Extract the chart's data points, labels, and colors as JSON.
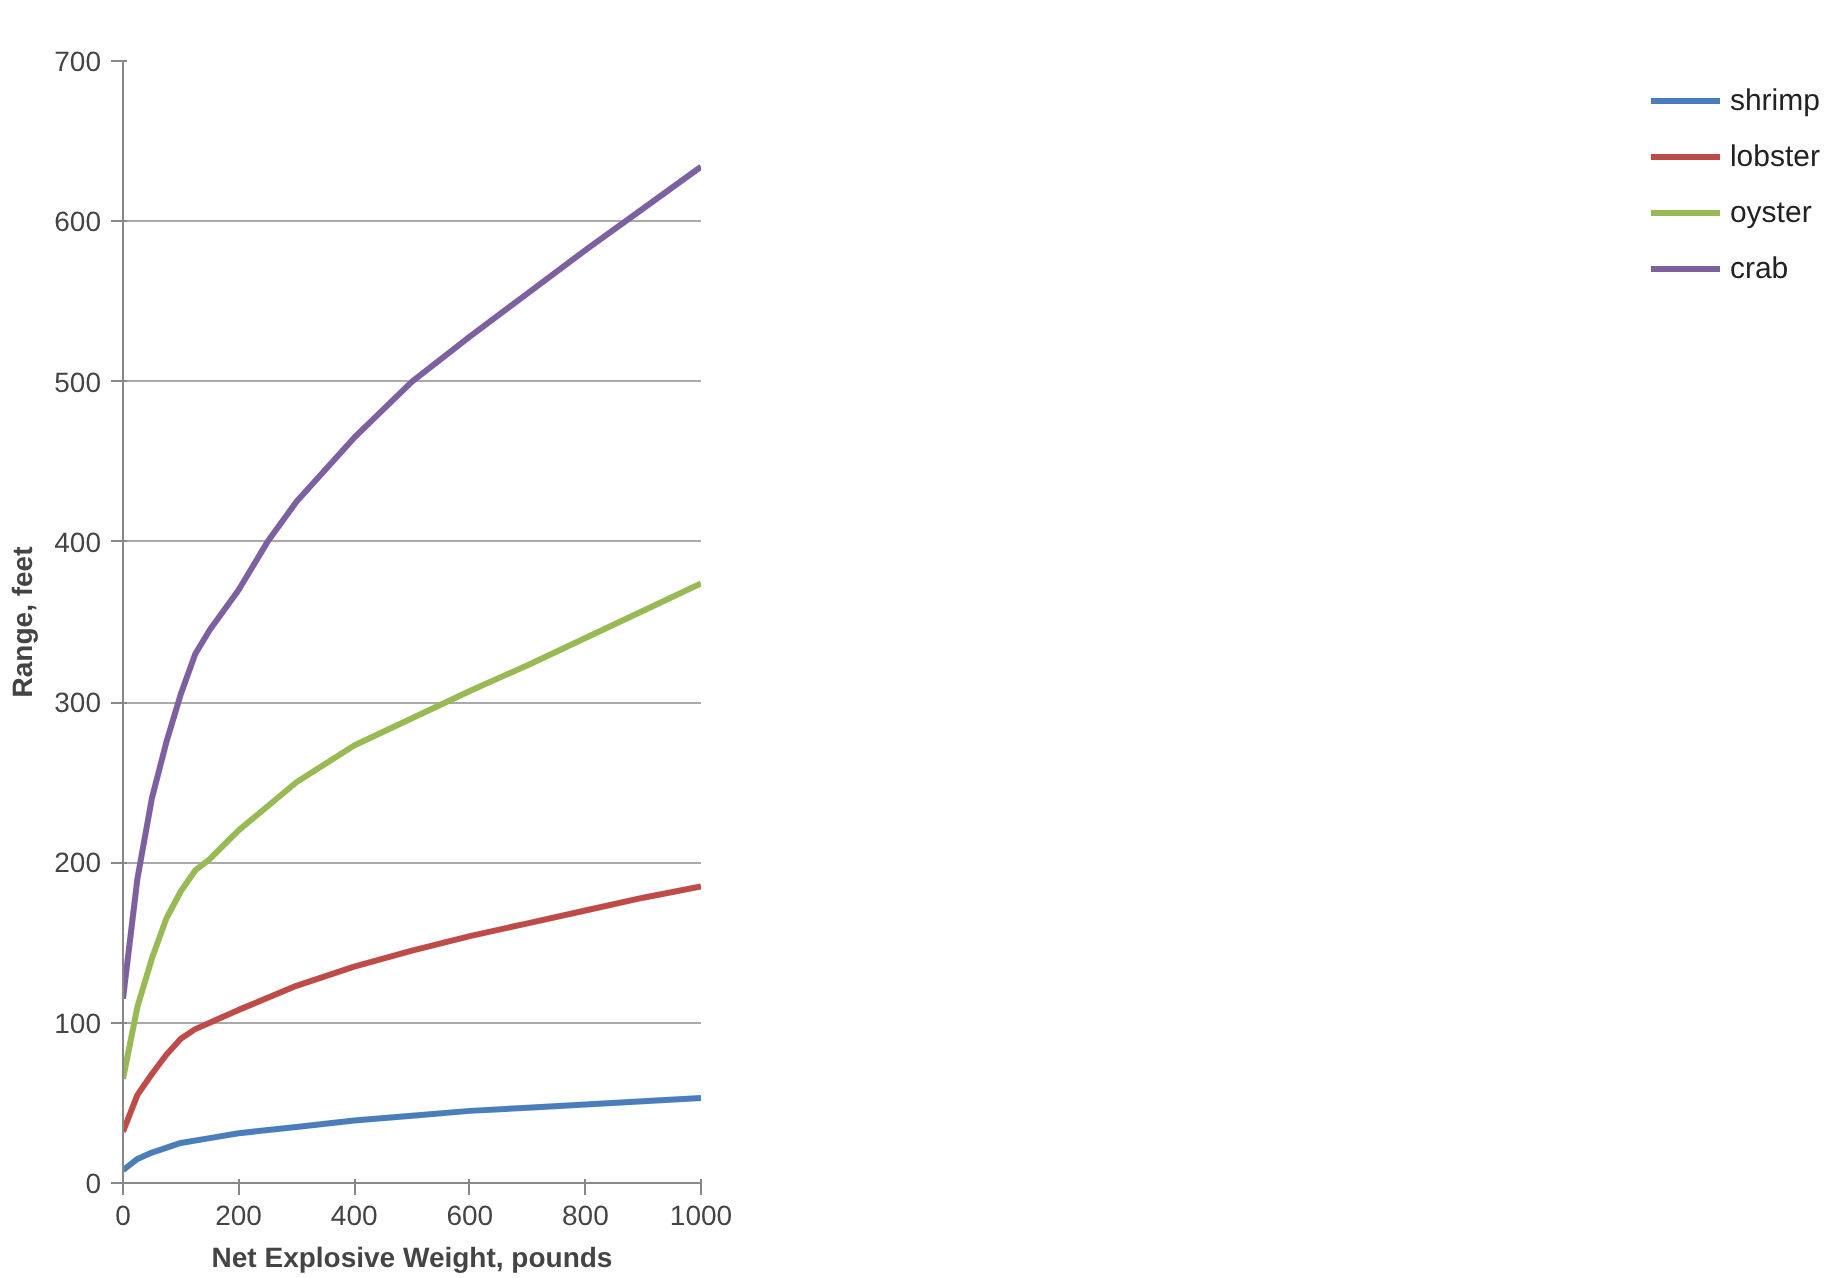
{
  "chart_data": {
    "type": "line",
    "xlabel": "Net Explosive Weight, pounds",
    "ylabel": "Range, feet",
    "xlim": [
      0,
      1000
    ],
    "xticks": [
      0,
      200,
      400,
      600,
      800,
      1000
    ],
    "ylim": [
      0,
      700
    ],
    "yticks": [
      0,
      100,
      200,
      300,
      400,
      500,
      600,
      700
    ],
    "grid": "y",
    "legend": "right",
    "marker": "none",
    "line_style": "solid",
    "series": [
      {
        "name": "shrimp",
        "color": "#4a7ebb",
        "x": [
          0,
          25,
          50,
          100,
          150,
          200,
          300,
          400,
          500,
          600,
          700,
          800,
          900,
          1000
        ],
        "values": [
          8,
          15,
          19,
          25,
          28,
          31,
          35,
          39,
          42,
          45,
          47,
          49,
          51,
          53
        ]
      },
      {
        "name": "lobster",
        "color": "#be4b48",
        "x": [
          0,
          25,
          50,
          75,
          100,
          125,
          150,
          200,
          300,
          400,
          500,
          600,
          700,
          800,
          900,
          1000
        ],
        "values": [
          32,
          55,
          68,
          80,
          90,
          96,
          100,
          108,
          123,
          135,
          145,
          154,
          162,
          170,
          178,
          185
        ]
      },
      {
        "name": "oyster",
        "color": "#98b954",
        "x": [
          0,
          25,
          50,
          75,
          100,
          125,
          150,
          200,
          300,
          400,
          500,
          600,
          700,
          800,
          900,
          1000
        ],
        "values": [
          65,
          110,
          140,
          165,
          182,
          195,
          202,
          220,
          250,
          273,
          290,
          307,
          323,
          340,
          357,
          374
        ]
      },
      {
        "name": "crab",
        "color": "#7d60a0",
        "x": [
          0,
          25,
          50,
          75,
          100,
          125,
          150,
          200,
          250,
          300,
          400,
          500,
          600,
          700,
          800,
          900,
          1000
        ],
        "values": [
          115,
          190,
          240,
          275,
          305,
          330,
          345,
          370,
          400,
          425,
          465,
          500,
          528,
          555,
          582,
          608,
          634
        ]
      }
    ]
  }
}
